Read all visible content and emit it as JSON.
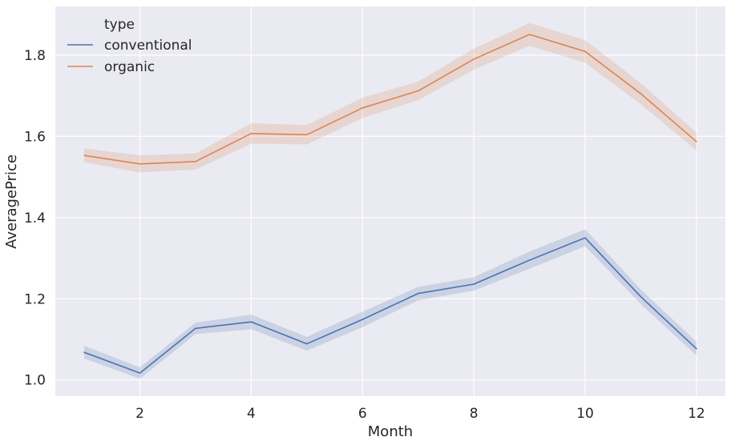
{
  "chart_data": {
    "type": "line",
    "title": "",
    "xlabel": "Month",
    "ylabel": "AveragePrice",
    "x": [
      1,
      2,
      3,
      4,
      5,
      6,
      7,
      8,
      9,
      10,
      11,
      12
    ],
    "xlim": [
      0.48,
      12.52
    ],
    "ylim": [
      0.96,
      1.92
    ],
    "xticks": [
      2,
      4,
      6,
      8,
      10,
      12
    ],
    "xtick_labels": [
      "2",
      "4",
      "6",
      "8",
      "10",
      "12"
    ],
    "yticks": [
      1.0,
      1.2,
      1.4,
      1.6,
      1.8
    ],
    "ytick_labels": [
      "1.0",
      "1.2",
      "1.4",
      "1.6",
      "1.8"
    ],
    "grid": true,
    "legend": {
      "title": "type",
      "placement": "top-left"
    },
    "series": [
      {
        "name": "conventional",
        "color": "#4c72b0",
        "values": [
          1.068,
          1.017,
          1.127,
          1.143,
          1.089,
          1.149,
          1.213,
          1.236,
          1.295,
          1.35,
          1.205,
          1.077
        ],
        "ci_lower": [
          1.053,
          1.003,
          1.113,
          1.125,
          1.072,
          1.13,
          1.196,
          1.22,
          1.274,
          1.329,
          1.187,
          1.06
        ],
        "ci_upper": [
          1.084,
          1.031,
          1.141,
          1.161,
          1.106,
          1.168,
          1.229,
          1.253,
          1.316,
          1.371,
          1.223,
          1.094
        ]
      },
      {
        "name": "organic",
        "color": "#dd8452",
        "values": [
          1.553,
          1.532,
          1.538,
          1.607,
          1.604,
          1.67,
          1.712,
          1.79,
          1.851,
          1.809,
          1.705,
          1.587
        ],
        "ci_lower": [
          1.536,
          1.511,
          1.518,
          1.582,
          1.58,
          1.645,
          1.689,
          1.764,
          1.823,
          1.781,
          1.679,
          1.565
        ],
        "ci_upper": [
          1.57,
          1.553,
          1.558,
          1.632,
          1.628,
          1.695,
          1.735,
          1.816,
          1.879,
          1.837,
          1.731,
          1.609
        ]
      }
    ]
  }
}
